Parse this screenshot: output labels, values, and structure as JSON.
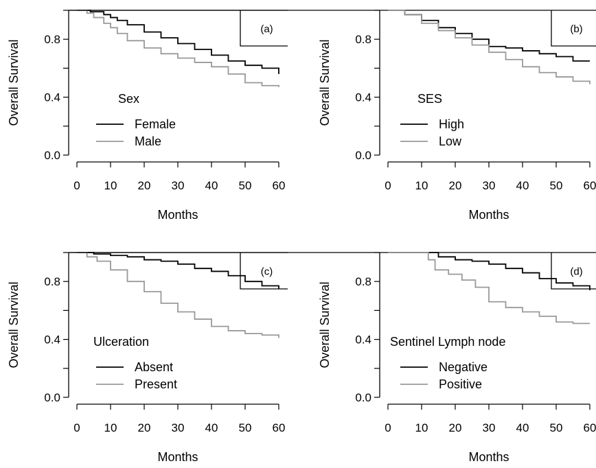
{
  "chart_data": [
    {
      "type": "line",
      "step": true,
      "panel_label": "(a)",
      "xlabel": "Months",
      "ylabel": "Overall Survival",
      "xlim": [
        0,
        60
      ],
      "ylim": [
        0,
        1
      ],
      "xticks": [
        "0",
        "10",
        "20",
        "30",
        "40",
        "50",
        "60"
      ],
      "yticks": [
        "0.0",
        "0.4",
        "0.8"
      ],
      "legend_title": "Sex",
      "legend_placement": "bottom-left",
      "series": [
        {
          "name": "Female",
          "color": "#000000",
          "x": [
            0,
            4,
            8,
            10,
            12,
            15,
            20,
            25,
            30,
            35,
            40,
            45,
            50,
            55,
            60
          ],
          "y": [
            1.0,
            0.99,
            0.97,
            0.95,
            0.93,
            0.9,
            0.85,
            0.81,
            0.77,
            0.73,
            0.69,
            0.65,
            0.62,
            0.6,
            0.56
          ]
        },
        {
          "name": "Male",
          "color": "#999999",
          "x": [
            0,
            3,
            5,
            8,
            10,
            12,
            15,
            20,
            25,
            30,
            35,
            40,
            45,
            50,
            55,
            60
          ],
          "y": [
            1.0,
            0.98,
            0.95,
            0.91,
            0.88,
            0.84,
            0.79,
            0.74,
            0.7,
            0.67,
            0.64,
            0.61,
            0.56,
            0.5,
            0.48,
            0.47
          ]
        }
      ]
    },
    {
      "type": "line",
      "step": true,
      "panel_label": "(b)",
      "xlabel": "Months",
      "ylabel": "Overall Survival",
      "xlim": [
        0,
        60
      ],
      "ylim": [
        0,
        1
      ],
      "xticks": [
        "0",
        "10",
        "20",
        "30",
        "40",
        "50",
        "60"
      ],
      "yticks": [
        "0.0",
        "0.4",
        "0.8"
      ],
      "legend_title": "SES",
      "legend_placement": "bottom-left",
      "series": [
        {
          "name": "High",
          "color": "#000000",
          "x": [
            0,
            5,
            10,
            15,
            20,
            25,
            30,
            35,
            40,
            45,
            50,
            55,
            60
          ],
          "y": [
            1.0,
            0.97,
            0.93,
            0.88,
            0.84,
            0.8,
            0.75,
            0.74,
            0.72,
            0.7,
            0.68,
            0.65,
            0.65
          ]
        },
        {
          "name": "Low",
          "color": "#999999",
          "x": [
            0,
            5,
            10,
            15,
            20,
            25,
            30,
            35,
            40,
            45,
            50,
            55,
            60
          ],
          "y": [
            1.0,
            0.97,
            0.91,
            0.86,
            0.81,
            0.76,
            0.71,
            0.66,
            0.61,
            0.57,
            0.54,
            0.51,
            0.49
          ]
        }
      ]
    },
    {
      "type": "line",
      "step": true,
      "panel_label": "(c)",
      "xlabel": "Months",
      "ylabel": "Overall Survival",
      "xlim": [
        0,
        60
      ],
      "ylim": [
        0,
        1
      ],
      "xticks": [
        "0",
        "10",
        "20",
        "30",
        "40",
        "50",
        "60"
      ],
      "yticks": [
        "0.0",
        "0.4",
        "0.8"
      ],
      "legend_title": "Ulceration",
      "legend_placement": "bottom-left",
      "series": [
        {
          "name": "Absent",
          "color": "#000000",
          "x": [
            0,
            5,
            10,
            15,
            20,
            25,
            30,
            35,
            40,
            45,
            50,
            55,
            60
          ],
          "y": [
            1.0,
            0.99,
            0.98,
            0.97,
            0.95,
            0.94,
            0.92,
            0.89,
            0.87,
            0.84,
            0.8,
            0.77,
            0.75
          ]
        },
        {
          "name": "Present",
          "color": "#999999",
          "x": [
            0,
            3,
            6,
            10,
            15,
            20,
            25,
            30,
            35,
            40,
            45,
            50,
            55,
            60
          ],
          "y": [
            1.0,
            0.97,
            0.94,
            0.88,
            0.8,
            0.73,
            0.65,
            0.59,
            0.54,
            0.49,
            0.46,
            0.44,
            0.43,
            0.41
          ]
        }
      ]
    },
    {
      "type": "line",
      "step": true,
      "panel_label": "(d)",
      "xlabel": "Months",
      "ylabel": "Overall Survival",
      "xlim": [
        0,
        60
      ],
      "ylim": [
        0,
        1
      ],
      "xticks": [
        "0",
        "10",
        "20",
        "30",
        "40",
        "50",
        "60"
      ],
      "yticks": [
        "0.0",
        "0.4",
        "0.8"
      ],
      "legend_title": "Sentinel Lymph node",
      "legend_placement": "bottom-left",
      "series": [
        {
          "name": "Negative",
          "color": "#000000",
          "x": [
            0,
            10,
            15,
            20,
            25,
            30,
            35,
            40,
            45,
            50,
            55,
            60
          ],
          "y": [
            1.0,
            1.0,
            0.97,
            0.95,
            0.94,
            0.92,
            0.89,
            0.86,
            0.82,
            0.79,
            0.77,
            0.74
          ]
        },
        {
          "name": "Positive",
          "color": "#999999",
          "x": [
            0,
            10,
            12,
            14,
            18,
            22,
            26,
            30,
            35,
            40,
            45,
            50,
            55,
            60
          ],
          "y": [
            1.0,
            1.0,
            0.95,
            0.88,
            0.85,
            0.81,
            0.76,
            0.66,
            0.62,
            0.59,
            0.56,
            0.52,
            0.51,
            0.51
          ]
        }
      ]
    }
  ]
}
